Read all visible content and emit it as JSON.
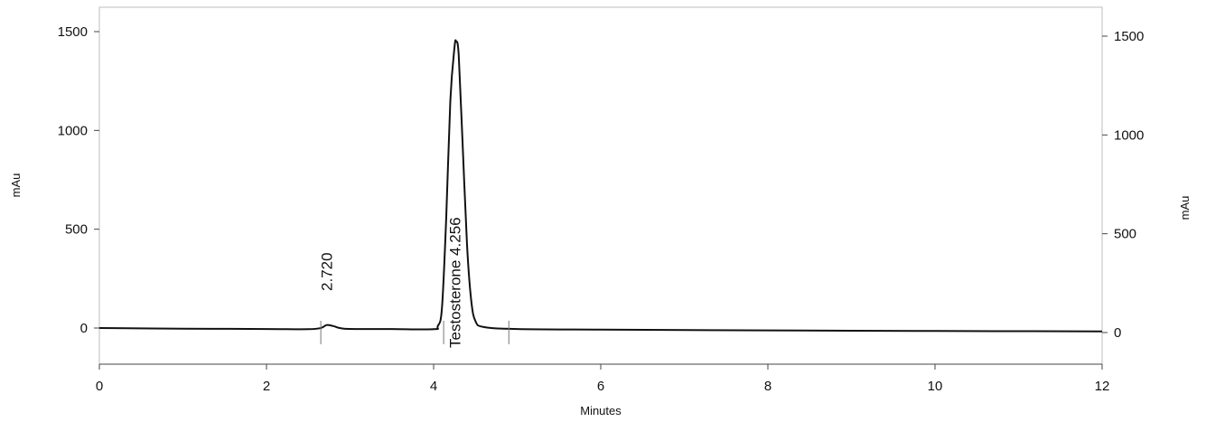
{
  "chart_data": {
    "type": "line",
    "xlabel": "Minutes",
    "ylabel_left": "mAu",
    "ylabel_right": "mAu",
    "xlim": [
      0,
      12
    ],
    "ylim": [
      -200,
      1650
    ],
    "x_ticks": [
      0,
      2,
      4,
      6,
      8,
      10,
      12
    ],
    "x_tick_labels": [
      "0",
      "2",
      "4",
      "6",
      "8",
      "10",
      "12"
    ],
    "y_ticks": [
      0,
      500,
      1000,
      1500
    ],
    "y_tick_labels": [
      "0",
      "500",
      "1000",
      "1500"
    ],
    "grid": false,
    "series": [
      {
        "x": [
          0,
          1,
          2,
          2.5,
          2.65,
          2.72,
          2.8,
          2.95,
          3.5,
          4.0,
          4.05,
          4.1,
          4.15,
          4.2,
          4.25,
          4.27,
          4.3,
          4.35,
          4.4,
          4.45,
          4.5,
          4.6,
          5.0,
          6,
          8,
          10,
          12
        ],
        "y": [
          0,
          -3,
          -5,
          -6,
          0,
          15,
          10,
          -4,
          -5,
          -6,
          10,
          100,
          550,
          1150,
          1420,
          1450,
          1380,
          900,
          420,
          140,
          35,
          5,
          -5,
          -8,
          -12,
          -15,
          -17
        ]
      }
    ],
    "peaks": [
      {
        "label": "2.720",
        "x": 2.72
      },
      {
        "label": "Testosterone  4.256",
        "x": 4.256
      }
    ]
  }
}
